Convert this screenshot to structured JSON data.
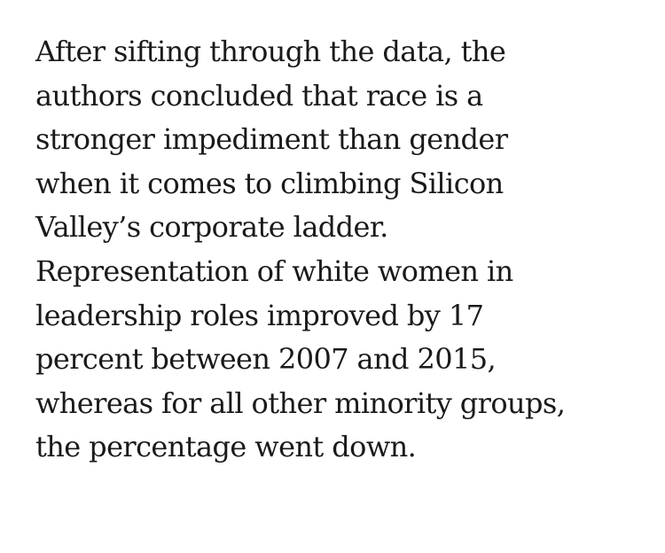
{
  "article": {
    "lines": [
      "After sifting through the data, the",
      "authors concluded that race is a",
      "stronger impediment than gender",
      "when it comes to climbing Silicon",
      "Valley’s corporate ladder.",
      "Representation of white women in",
      "leadership roles improved by 17",
      "percent between 2007 and 2015,",
      "whereas for all other minority groups,",
      "the percentage went down."
    ]
  }
}
